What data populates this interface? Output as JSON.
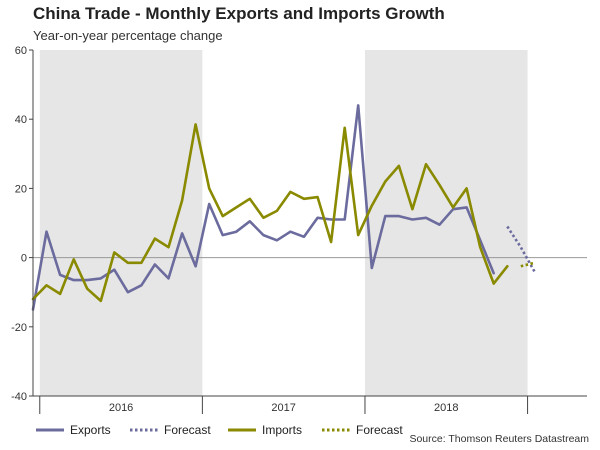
{
  "title": "China Trade - Monthly Exports and Imports Growth",
  "subtitle": "Year-on-year percentage change",
  "source": "Source: Thomson Reuters Datastream",
  "colors": {
    "exports": "#6b6b9e",
    "imports": "#8a8a00",
    "shade": "#e6e6e6",
    "grid": "#999999",
    "axis": "#444444"
  },
  "chart_data": {
    "type": "line",
    "title": "China Trade - Monthly Exports and Imports Growth",
    "ylabel": "Year-on-year percentage change",
    "ylim": [
      -40,
      60
    ],
    "yticks": [
      60,
      40,
      20,
      0,
      -20,
      -40
    ],
    "year_labels": [
      "2016",
      "2017",
      "2018"
    ],
    "shaded_periods": [
      {
        "label": "2016",
        "from": "2016-01",
        "to": "2016-12"
      },
      {
        "label": "2018",
        "from": "2018-01",
        "to": "2018-12"
      }
    ],
    "x": [
      "2015-12",
      "2016-01",
      "2016-02",
      "2016-03",
      "2016-04",
      "2016-05",
      "2016-06",
      "2016-07",
      "2016-08",
      "2016-09",
      "2016-10",
      "2016-11",
      "2016-12",
      "2017-01",
      "2017-02",
      "2017-03",
      "2017-04",
      "2017-05",
      "2017-06",
      "2017-07",
      "2017-08",
      "2017-09",
      "2017-10",
      "2017-11",
      "2017-12",
      "2018-01",
      "2018-02",
      "2018-03",
      "2018-04",
      "2018-05",
      "2018-06",
      "2018-07",
      "2018-08",
      "2018-09",
      "2018-10",
      "2018-11",
      "2018-12",
      "2019-01"
    ],
    "series": [
      {
        "name": "Exports",
        "style": "solid",
        "values": [
          -15,
          7.5,
          -5,
          -6.5,
          -6.5,
          -6,
          -3.5,
          -10,
          -8,
          -2,
          -6,
          7,
          -2.5,
          15.5,
          6.5,
          7.5,
          10.5,
          6.5,
          5,
          7.5,
          6,
          11.5,
          11,
          11,
          44,
          -3,
          12,
          12,
          11,
          11.5,
          9.5,
          14,
          14.5,
          5,
          -4.5,
          null,
          null,
          null
        ]
      },
      {
        "name": "Forecast",
        "of": "Exports",
        "style": "dotted",
        "x": [
          "2018-11",
          "2018-12",
          "2019-01"
        ],
        "values": [
          9,
          3,
          -4
        ]
      },
      {
        "name": "Imports",
        "style": "solid",
        "values": [
          -12,
          -8,
          -10.5,
          -0.5,
          -9,
          -12.5,
          1.5,
          -1.5,
          -1.5,
          5.5,
          3,
          16.5,
          38.5,
          20,
          12,
          14.5,
          17,
          11.5,
          13.5,
          19,
          17,
          17.5,
          4.5,
          37.5,
          6.5,
          15,
          22,
          26.5,
          14,
          27,
          21,
          14.5,
          20,
          3,
          -7.5,
          -2.5,
          null,
          null
        ]
      },
      {
        "name": "Forecast",
        "of": "Imports",
        "style": "dotted",
        "x": [
          "2018-12",
          "2019-01"
        ],
        "values": [
          -2.5,
          -1.5
        ]
      }
    ],
    "legend": [
      "Exports",
      "Forecast",
      "Imports",
      "Forecast"
    ],
    "legend_position": "bottom"
  }
}
